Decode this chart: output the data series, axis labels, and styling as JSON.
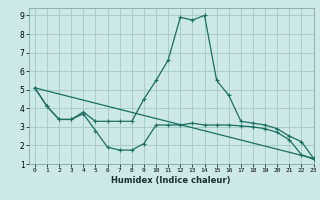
{
  "title": "",
  "xlabel": "Humidex (Indice chaleur)",
  "ylabel": "",
  "background_color": "#cce8e8",
  "grid_color": "#aacccc",
  "line_color": "#1a7060",
  "xlim": [
    -0.5,
    23
  ],
  "ylim": [
    1,
    9.4
  ],
  "yticks": [
    1,
    2,
    3,
    4,
    5,
    6,
    7,
    8,
    9
  ],
  "xticks": [
    0,
    1,
    2,
    3,
    4,
    5,
    6,
    7,
    8,
    9,
    10,
    11,
    12,
    13,
    14,
    15,
    16,
    17,
    18,
    19,
    20,
    21,
    22,
    23
  ],
  "series1_x": [
    0,
    1,
    2,
    3,
    4,
    5,
    6,
    7,
    8,
    9,
    10,
    11,
    12,
    13,
    14,
    15,
    16,
    17,
    18,
    19,
    20,
    21,
    22,
    23
  ],
  "series1_y": [
    5.1,
    4.1,
    3.4,
    3.4,
    3.8,
    3.3,
    3.3,
    3.3,
    3.3,
    4.5,
    5.5,
    6.6,
    8.9,
    8.75,
    9.0,
    5.5,
    4.7,
    3.3,
    3.2,
    3.1,
    2.9,
    2.5,
    2.2,
    1.3
  ],
  "series2_x": [
    0,
    1,
    2,
    3,
    4,
    5,
    6,
    7,
    8,
    9,
    10,
    11,
    12,
    13,
    14,
    15,
    16,
    17,
    18,
    19,
    20,
    21,
    22,
    23
  ],
  "series2_y": [
    5.1,
    4.1,
    3.4,
    3.4,
    3.7,
    2.8,
    1.9,
    1.75,
    1.75,
    2.1,
    3.1,
    3.1,
    3.1,
    3.2,
    3.1,
    3.1,
    3.1,
    3.05,
    3.0,
    2.9,
    2.7,
    2.3,
    1.5,
    1.25
  ],
  "series3_x": [
    0,
    23
  ],
  "series3_y": [
    5.1,
    1.3
  ]
}
